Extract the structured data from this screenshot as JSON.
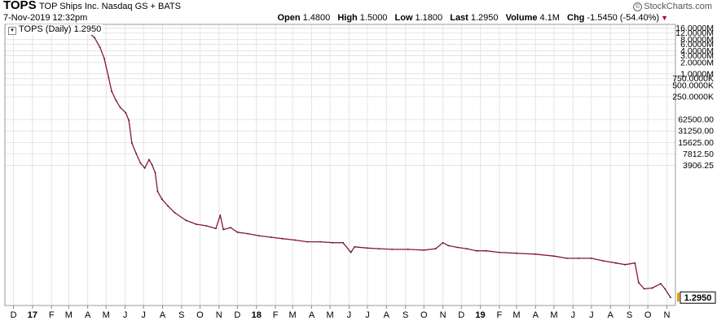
{
  "header": {
    "symbol": "TOPS",
    "company": "TOP Ships Inc. Nasdaq GS + BATS",
    "timestamp": "7-Nov-2019 12:32pm",
    "brand": "StockCharts.com",
    "quote": {
      "open_label": "Open",
      "open": "1.4800",
      "high_label": "High",
      "high": "1.5000",
      "low_label": "Low",
      "low": "1.1800",
      "last_label": "Last",
      "last": "1.2950",
      "volume_label": "Volume",
      "volume": "4.1M",
      "chg_label": "Chg",
      "chg": "-1.5450 (-54.40%)"
    }
  },
  "legend": {
    "text": "TOPS (Daily) 1.2950"
  },
  "colors": {
    "line": "#8b1538",
    "grid": "#e4e4e4",
    "frame": "#999999",
    "last_marker": "#e8a000"
  },
  "chart_data": {
    "type": "line",
    "scale": "log",
    "title": "TOPS (Daily) 1.2950",
    "ylim": [
      0.8,
      20000000
    ],
    "y_ticks": [
      {
        "v": 16000000,
        "label": "16.0000M"
      },
      {
        "v": 12000000,
        "label": "12.0000M"
      },
      {
        "v": 8000000,
        "label": "8.0000M"
      },
      {
        "v": 6000000,
        "label": "6.0000M"
      },
      {
        "v": 4000000,
        "label": "4.0000M"
      },
      {
        "v": 3000000,
        "label": "3.0000M"
      },
      {
        "v": 2000000,
        "label": "2.0000M"
      },
      {
        "v": 1000000,
        "label": "1.0000M"
      },
      {
        "v": 750000,
        "label": "750.0000K"
      },
      {
        "v": 500000,
        "label": "500.0000K"
      },
      {
        "v": 250000,
        "label": "250.0000K"
      },
      {
        "v": 62500,
        "label": "62500.00"
      },
      {
        "v": 31250,
        "label": "31250.00"
      },
      {
        "v": 15625,
        "label": "15625.00"
      },
      {
        "v": 7812.5,
        "label": "7812.50"
      },
      {
        "v": 3906.25,
        "label": "3906.25"
      }
    ],
    "last_value": 1.295,
    "last_label": "1.2950",
    "x_ticks": [
      {
        "date": "2016-12-01",
        "label": "D",
        "bold": false
      },
      {
        "date": "2017-01-01",
        "label": "17",
        "bold": true
      },
      {
        "date": "2017-02-01",
        "label": "F",
        "bold": false
      },
      {
        "date": "2017-03-01",
        "label": "M",
        "bold": false
      },
      {
        "date": "2017-04-01",
        "label": "A",
        "bold": false
      },
      {
        "date": "2017-05-01",
        "label": "M",
        "bold": false
      },
      {
        "date": "2017-06-01",
        "label": "J",
        "bold": false
      },
      {
        "date": "2017-07-01",
        "label": "J",
        "bold": false
      },
      {
        "date": "2017-08-01",
        "label": "A",
        "bold": false
      },
      {
        "date": "2017-09-01",
        "label": "S",
        "bold": false
      },
      {
        "date": "2017-10-01",
        "label": "O",
        "bold": false
      },
      {
        "date": "2017-11-01",
        "label": "N",
        "bold": false
      },
      {
        "date": "2017-12-01",
        "label": "D",
        "bold": false
      },
      {
        "date": "2018-01-01",
        "label": "18",
        "bold": true
      },
      {
        "date": "2018-02-01",
        "label": "F",
        "bold": false
      },
      {
        "date": "2018-03-01",
        "label": "M",
        "bold": false
      },
      {
        "date": "2018-04-01",
        "label": "A",
        "bold": false
      },
      {
        "date": "2018-05-01",
        "label": "M",
        "bold": false
      },
      {
        "date": "2018-06-01",
        "label": "J",
        "bold": false
      },
      {
        "date": "2018-07-01",
        "label": "J",
        "bold": false
      },
      {
        "date": "2018-08-01",
        "label": "A",
        "bold": false
      },
      {
        "date": "2018-09-01",
        "label": "S",
        "bold": false
      },
      {
        "date": "2018-10-01",
        "label": "O",
        "bold": false
      },
      {
        "date": "2018-11-01",
        "label": "N",
        "bold": false
      },
      {
        "date": "2018-12-01",
        "label": "D",
        "bold": false
      },
      {
        "date": "2019-01-01",
        "label": "19",
        "bold": true
      },
      {
        "date": "2019-02-01",
        "label": "F",
        "bold": false
      },
      {
        "date": "2019-03-01",
        "label": "M",
        "bold": false
      },
      {
        "date": "2019-04-01",
        "label": "A",
        "bold": false
      },
      {
        "date": "2019-05-01",
        "label": "M",
        "bold": false
      },
      {
        "date": "2019-06-01",
        "label": "J",
        "bold": false
      },
      {
        "date": "2019-07-01",
        "label": "J",
        "bold": false
      },
      {
        "date": "2019-08-01",
        "label": "A",
        "bold": false
      },
      {
        "date": "2019-09-01",
        "label": "S",
        "bold": false
      },
      {
        "date": "2019-10-01",
        "label": "O",
        "bold": false
      },
      {
        "date": "2019-11-01",
        "label": "N",
        "bold": false
      }
    ],
    "xlim": [
      "2016-11-17",
      "2019-11-15"
    ],
    "series": [
      {
        "points": [
          [
            "2017-03-27",
            18000000
          ],
          [
            "2017-04-03",
            12000000
          ],
          [
            "2017-04-12",
            9000000
          ],
          [
            "2017-04-21",
            5000000
          ],
          [
            "2017-04-28",
            2500000
          ],
          [
            "2017-05-05",
            800000
          ],
          [
            "2017-05-10",
            350000
          ],
          [
            "2017-05-17",
            200000
          ],
          [
            "2017-05-24",
            130000
          ],
          [
            "2017-06-02",
            95000
          ],
          [
            "2017-06-07",
            60000
          ],
          [
            "2017-06-12",
            15000
          ],
          [
            "2017-06-19",
            8000
          ],
          [
            "2017-06-26",
            4500
          ],
          [
            "2017-07-03",
            3300
          ],
          [
            "2017-07-10",
            5500
          ],
          [
            "2017-07-15",
            4000
          ],
          [
            "2017-07-20",
            2500
          ],
          [
            "2017-07-24",
            800
          ],
          [
            "2017-07-31",
            500
          ],
          [
            "2017-08-10",
            330
          ],
          [
            "2017-08-21",
            220
          ],
          [
            "2017-09-08",
            140
          ],
          [
            "2017-09-25",
            110
          ],
          [
            "2017-10-11",
            100
          ],
          [
            "2017-10-27",
            85
          ],
          [
            "2017-11-03",
            190
          ],
          [
            "2017-11-08",
            80
          ],
          [
            "2017-11-20",
            90
          ],
          [
            "2017-12-01",
            68
          ],
          [
            "2017-12-18",
            62
          ],
          [
            "2018-01-05",
            55
          ],
          [
            "2018-01-25",
            50
          ],
          [
            "2018-02-12",
            46
          ],
          [
            "2018-03-05",
            42
          ],
          [
            "2018-03-25",
            38
          ],
          [
            "2018-04-15",
            38
          ],
          [
            "2018-05-05",
            36
          ],
          [
            "2018-05-22",
            36
          ],
          [
            "2018-06-04",
            20
          ],
          [
            "2018-06-10",
            28
          ],
          [
            "2018-07-01",
            26
          ],
          [
            "2018-07-20",
            25
          ],
          [
            "2018-08-10",
            24
          ],
          [
            "2018-09-05",
            24
          ],
          [
            "2018-10-01",
            23
          ],
          [
            "2018-10-20",
            25
          ],
          [
            "2018-11-01",
            36
          ],
          [
            "2018-11-10",
            30
          ],
          [
            "2018-11-25",
            27
          ],
          [
            "2018-12-10",
            25
          ],
          [
            "2018-12-26",
            22
          ],
          [
            "2019-01-10",
            22
          ],
          [
            "2019-02-01",
            20
          ],
          [
            "2019-03-01",
            19
          ],
          [
            "2019-04-01",
            18
          ],
          [
            "2019-05-01",
            16
          ],
          [
            "2019-05-22",
            14
          ],
          [
            "2019-06-10",
            14
          ],
          [
            "2019-07-01",
            14
          ],
          [
            "2019-07-20",
            12
          ],
          [
            "2019-08-10",
            10.5
          ],
          [
            "2019-08-25",
            9.5
          ],
          [
            "2019-09-10",
            10.5
          ],
          [
            "2019-09-16",
            3.2
          ],
          [
            "2019-09-25",
            2.2
          ],
          [
            "2019-10-08",
            2.3
          ],
          [
            "2019-10-22",
            3.0
          ],
          [
            "2019-10-29",
            2.2
          ],
          [
            "2019-11-07",
            1.295
          ]
        ]
      }
    ]
  }
}
